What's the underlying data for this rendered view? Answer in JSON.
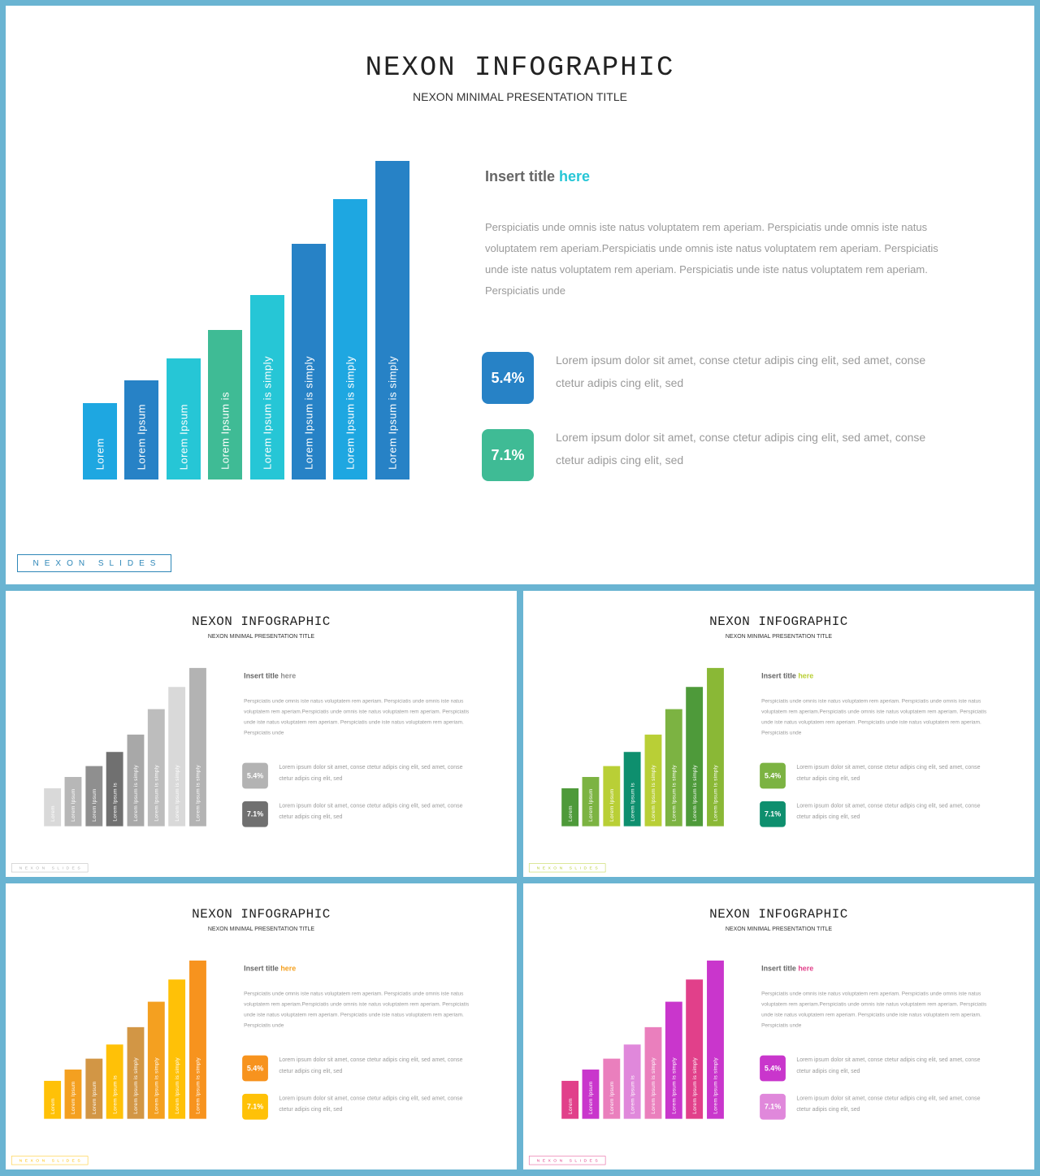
{
  "slides": {
    "main": {
      "title": "NEXON INFOGRAPHIC",
      "subtitle": "NEXON MINIMAL PRESENTATION TITLE",
      "insert_title": "Insert title",
      "insert_highlight": "here",
      "paragraph": "Perspiciatis unde omnis iste natus voluptatem rem aperiam. Perspiciatis unde omnis iste natus voluptatem rem aperiam.Perspiciatis unde omnis iste natus voluptatem rem aperiam. Perspiciatis unde iste natus voluptatem rem aperiam. Perspiciatis unde iste natus voluptatem rem aperiam. Perspiciatis unde",
      "stat1_value": "5.4%",
      "stat1_text": "Lorem ipsum dolor sit amet, conse ctetur adipis cing elit, sed amet, conse ctetur adipis cing elit, sed",
      "stat2_value": "7.1%",
      "stat2_text": "Lorem ipsum dolor sit amet, conse ctetur adipis cing elit, sed amet, conse ctetur adipis cing elit, sed",
      "footer": "NEXON SLIDES"
    },
    "gray": {
      "title": "NEXON INFOGRAPHIC",
      "subtitle": "NEXON MINIMAL PRESENTATION TITLE",
      "insert_title": "Insert title",
      "insert_highlight": "here",
      "paragraph": "Perspiciatis unde omnis iste natus voluptatem rem aperiam. Perspiciatis unde omnis iste natus voluptatem rem aperiam.Perspiciatis unde omnis iste natus voluptatem rem aperiam. Perspiciatis unde iste natus voluptatem rem aperiam. Perspiciatis unde iste natus voluptatem rem aperiam. Perspiciatis unde",
      "stat1_value": "5.4%",
      "stat1_text": "Lorem ipsum dolor sit amet, conse ctetur adipis cing elit, sed amet, conse ctetur adipis cing elit, sed",
      "stat2_value": "7.1%",
      "stat2_text": "Lorem ipsum dolor sit amet, conse ctetur adipis cing elit, sed amet, conse ctetur adipis cing elit, sed",
      "footer": "NEXON SLIDES"
    },
    "green": {
      "title": "NEXON INFOGRAPHIC",
      "subtitle": "NEXON MINIMAL PRESENTATION TITLE",
      "insert_title": "Insert title",
      "insert_highlight": "here",
      "paragraph": "Perspiciatis unde omnis iste natus voluptatem rem aperiam. Perspiciatis unde omnis iste natus voluptatem rem aperiam.Perspiciatis unde omnis iste natus voluptatem rem aperiam. Perspiciatis unde iste natus voluptatem rem aperiam. Perspiciatis unde iste natus voluptatem rem aperiam. Perspiciatis unde",
      "stat1_value": "5.4%",
      "stat1_text": "Lorem ipsum dolor sit amet, conse ctetur adipis cing elit, sed amet, conse ctetur adipis cing elit, sed",
      "stat2_value": "7.1%",
      "stat2_text": "Lorem ipsum dolor sit amet, conse ctetur adipis cing elit, sed amet, conse ctetur adipis cing elit, sed",
      "footer": "NEXON SLIDES"
    },
    "orange": {
      "title": "NEXON INFOGRAPHIC",
      "subtitle": "NEXON MINIMAL PRESENTATION TITLE",
      "insert_title": "Insert title",
      "insert_highlight": "here",
      "paragraph": "Perspiciatis unde omnis iste natus voluptatem rem aperiam. Perspiciatis unde omnis iste natus voluptatem rem aperiam.Perspiciatis unde omnis iste natus voluptatem rem aperiam. Perspiciatis unde iste natus voluptatem rem aperiam. Perspiciatis unde iste natus voluptatem rem aperiam. Perspiciatis unde",
      "stat1_value": "5.4%",
      "stat1_text": "Lorem ipsum dolor sit amet, conse ctetur adipis cing elit, sed amet, conse ctetur adipis cing elit, sed",
      "stat2_value": "7.1%",
      "stat2_text": "Lorem ipsum dolor sit amet, conse ctetur adipis cing elit, sed amet, conse ctetur adipis cing elit, sed",
      "footer": "NEXON SLIDES"
    },
    "pink": {
      "title": "NEXON INFOGRAPHIC",
      "subtitle": "NEXON MINIMAL PRESENTATION TITLE",
      "insert_title": "Insert title",
      "insert_highlight": "here",
      "paragraph": "Perspiciatis unde omnis iste natus voluptatem rem aperiam. Perspiciatis unde omnis iste natus voluptatem rem aperiam.Perspiciatis unde omnis iste natus voluptatem rem aperiam. Perspiciatis unde iste natus voluptatem rem aperiam. Perspiciatis unde iste natus voluptatem rem aperiam. Perspiciatis unde",
      "stat1_value": "5.4%",
      "stat1_text": "Lorem ipsum dolor sit amet, conse ctetur adipis cing elit, sed amet, conse ctetur adipis cing elit, sed",
      "stat2_value": "7.1%",
      "stat2_text": "Lorem ipsum dolor sit amet, conse ctetur adipis cing elit, sed amet, conse ctetur adipis cing elit, sed",
      "footer": "NEXON SLIDES"
    }
  },
  "bar_chart": {
    "type": "bar",
    "categories": [
      "Lorem",
      "Lorem Ipsum",
      "Lorem Ipsum",
      "Lorem Ipsum is",
      "Lorem Ipsum is simply",
      "Lorem Ipsum is simply",
      "Lorem Ipsum is simply",
      "Lorem Ipsum is simply"
    ],
    "values": [
      24,
      31,
      38,
      47,
      58,
      74,
      88,
      100
    ],
    "ylim": [
      0,
      100
    ]
  },
  "palettes": {
    "main": {
      "bars": [
        "#1ea7e1",
        "#2782c6",
        "#26c6d6",
        "#3fbb95",
        "#26c6d6",
        "#2782c6",
        "#1ea7e1",
        "#2782c6"
      ],
      "highlight": "#26c6d6",
      "stat1": "#2782c6",
      "stat2": "#3fbb95",
      "footer": "#2e87b8"
    },
    "gray": {
      "bars": [
        "#d9d9d9",
        "#b7b7b7",
        "#8f8f8f",
        "#707070",
        "#a8a8a8",
        "#bdbdbd",
        "#d9d9d9",
        "#b3b3b3"
      ],
      "highlight": "#8f8f8f",
      "stat1": "#b3b3b3",
      "stat2": "#707070",
      "footer": "#b3b3b3"
    },
    "green": {
      "bars": [
        "#4e9a3a",
        "#7cb342",
        "#b9cf36",
        "#0e8f6e",
        "#b9cf36",
        "#7cb342",
        "#4e9a3a",
        "#8ab836"
      ],
      "highlight": "#b9cf36",
      "stat1": "#7cb342",
      "stat2": "#0e8f6e",
      "footer": "#b9cf36"
    },
    "orange": {
      "bars": [
        "#ffc107",
        "#f4a020",
        "#d29645",
        "#ffc107",
        "#d29645",
        "#f4a020",
        "#ffc107",
        "#f7931e"
      ],
      "highlight": "#f4a020",
      "stat1": "#f7931e",
      "stat2": "#ffc107",
      "footer": "#ffc107"
    },
    "pink": {
      "bars": [
        "#e1408a",
        "#c936cc",
        "#ea7fbd",
        "#e088db",
        "#ea7fbd",
        "#c936cc",
        "#e1408a",
        "#c936cc"
      ],
      "highlight": "#e1408a",
      "stat1": "#c936cc",
      "stat2": "#e088db",
      "footer": "#e1408a"
    }
  }
}
